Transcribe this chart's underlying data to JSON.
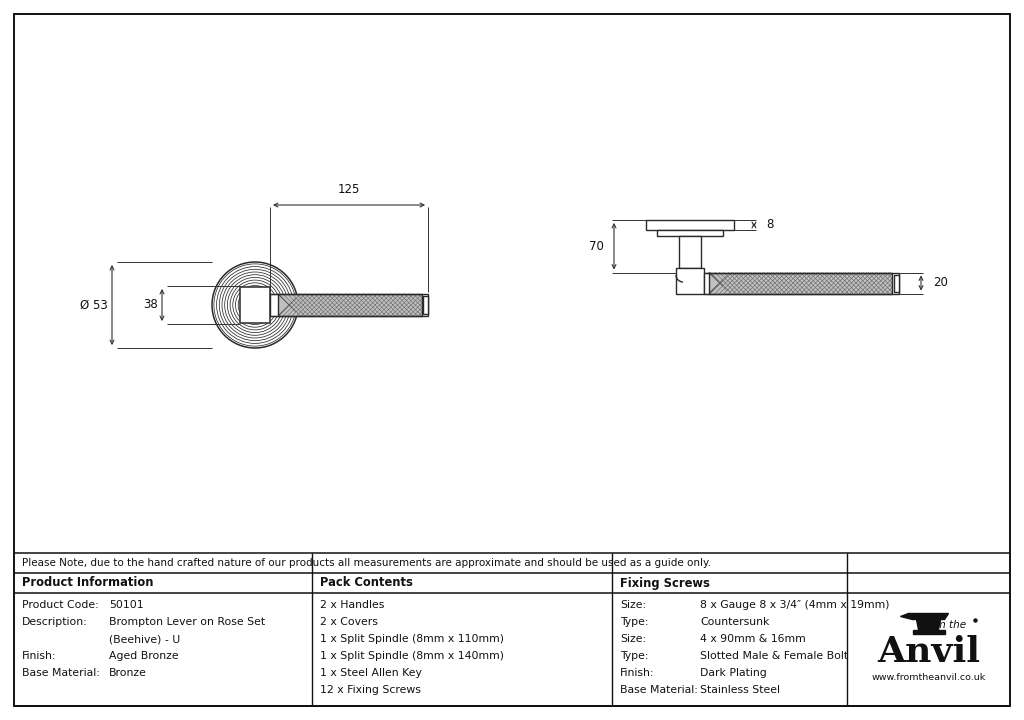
{
  "bg_color": "#ffffff",
  "line_color": "#2a2a2a",
  "dim_color": "#333333",
  "text_color": "#111111",
  "note_text": "Please Note, due to the hand crafted nature of our products all measurements are approximate and should be used as a guide only.",
  "table": {
    "col1_header": "Product Information",
    "col2_header": "Pack Contents",
    "col3_header": "Fixing Screws",
    "col1_rows": [
      [
        "Product Code:",
        "50101"
      ],
      [
        "Description:",
        "Brompton Lever on Rose Set"
      ],
      [
        "",
        "(Beehive) - U"
      ],
      [
        "Finish:",
        "Aged Bronze"
      ],
      [
        "Base Material:",
        "Bronze"
      ]
    ],
    "col2_rows": [
      "2 x Handles",
      "2 x Covers",
      "1 x Split Spindle (8mm x 110mm)",
      "1 x Split Spindle (8mm x 140mm)",
      "1 x Steel Allen Key",
      "12 x Fixing Screws"
    ],
    "col3_rows": [
      [
        "Size:",
        "8 x Gauge 8 x 3/4″ (4mm x 19mm)"
      ],
      [
        "Type:",
        "Countersunk"
      ],
      [
        "Size:",
        "4 x 90mm & 16mm"
      ],
      [
        "Type:",
        "Slotted Male & Female Bolt"
      ],
      [
        "Finish:",
        "Dark Plating"
      ],
      [
        "Base Material:",
        "Stainless Steel"
      ]
    ]
  },
  "dim_125": "125",
  "dim_53": "Ø 53",
  "dim_38": "38",
  "dim_8": "8",
  "dim_70": "70",
  "dim_20": "20",
  "anvil_url": "www.fromtheanvil.co.uk"
}
